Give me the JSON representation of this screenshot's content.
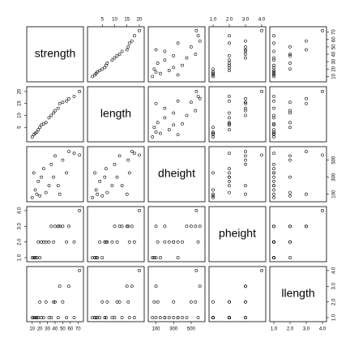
{
  "chart_data": {
    "type": "scatter_matrix",
    "variables": [
      {
        "name": "strength",
        "lim": [
          6,
          74
        ],
        "ticks": [
          10,
          20,
          30,
          40,
          50,
          60,
          70
        ],
        "values": [
          10,
          12,
          14,
          16,
          18,
          20,
          22,
          25,
          28,
          32,
          35,
          38,
          40,
          44,
          46,
          50,
          55,
          58,
          65,
          72
        ]
      },
      {
        "name": "length",
        "lim": [
          0,
          21
        ],
        "ticks": [
          5,
          10,
          15,
          20
        ],
        "values": [
          1,
          2,
          2.5,
          3,
          4,
          5,
          6,
          6.5,
          7,
          9,
          10,
          11,
          12,
          13,
          15,
          15.5,
          16,
          17,
          18,
          20
        ]
      },
      {
        "name": "dheight",
        "lim": [
          40,
          630
        ],
        "ticks": [
          100,
          300,
          500
        ],
        "values": [
          60,
          350,
          150,
          100,
          250,
          80,
          300,
          400,
          120,
          200,
          450,
          300,
          550,
          200,
          100,
          500,
          350,
          600,
          580,
          560
        ]
      },
      {
        "name": "pheight",
        "lim": [
          0.9,
          4.1
        ],
        "ticks": [
          {
            "value": 1,
            "label": "1.0"
          },
          {
            "value": 2,
            "label": "2.0"
          },
          {
            "value": 3,
            "label": "3.0"
          },
          {
            "value": 4,
            "label": "4.0"
          }
        ],
        "values": [
          1,
          1,
          1,
          1,
          2,
          1,
          2,
          2,
          2,
          2,
          3,
          2,
          3,
          3,
          3,
          3,
          2,
          3,
          2,
          4
        ]
      },
      {
        "name": "llength",
        "lim": [
          0.9,
          4.1
        ],
        "ticks": [
          {
            "value": 1,
            "label": "1.0"
          },
          {
            "value": 2,
            "label": "2.0"
          },
          {
            "value": 3,
            "label": "3.0"
          },
          {
            "value": 4,
            "label": "4.0"
          }
        ],
        "values": [
          1,
          1,
          1,
          1,
          1,
          2,
          1,
          1,
          2,
          1,
          1,
          2,
          2,
          1,
          3,
          2,
          1,
          3,
          1,
          4
        ]
      }
    ]
  }
}
